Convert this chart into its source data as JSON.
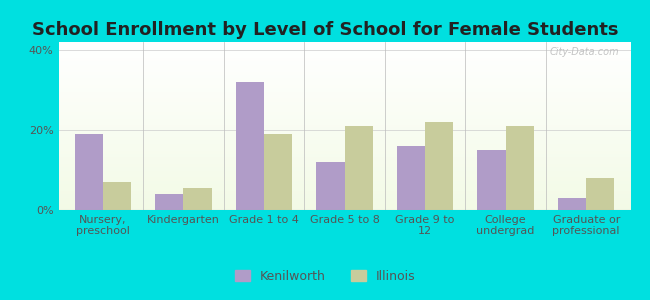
{
  "title": "School Enrollment by Level of School for Female Students",
  "categories": [
    "Nursery,\npreschool",
    "Kindergarten",
    "Grade 1 to 4",
    "Grade 5 to 8",
    "Grade 9 to\n12",
    "College\nundergrad",
    "Graduate or\nprofessional"
  ],
  "kenilworth": [
    19.0,
    4.0,
    32.0,
    12.0,
    16.0,
    15.0,
    3.0
  ],
  "illinois": [
    7.0,
    5.5,
    19.0,
    21.0,
    22.0,
    21.0,
    8.0
  ],
  "kenilworth_color": "#b09cc8",
  "illinois_color": "#c8cc9c",
  "background_color": "#00e0e0",
  "ylim": [
    0,
    42
  ],
  "yticks": [
    0,
    20,
    40
  ],
  "ytick_labels": [
    "0%",
    "20%",
    "40%"
  ],
  "bar_width": 0.35,
  "title_fontsize": 13,
  "tick_fontsize": 8,
  "legend_fontsize": 9,
  "watermark": "City-Data.com"
}
